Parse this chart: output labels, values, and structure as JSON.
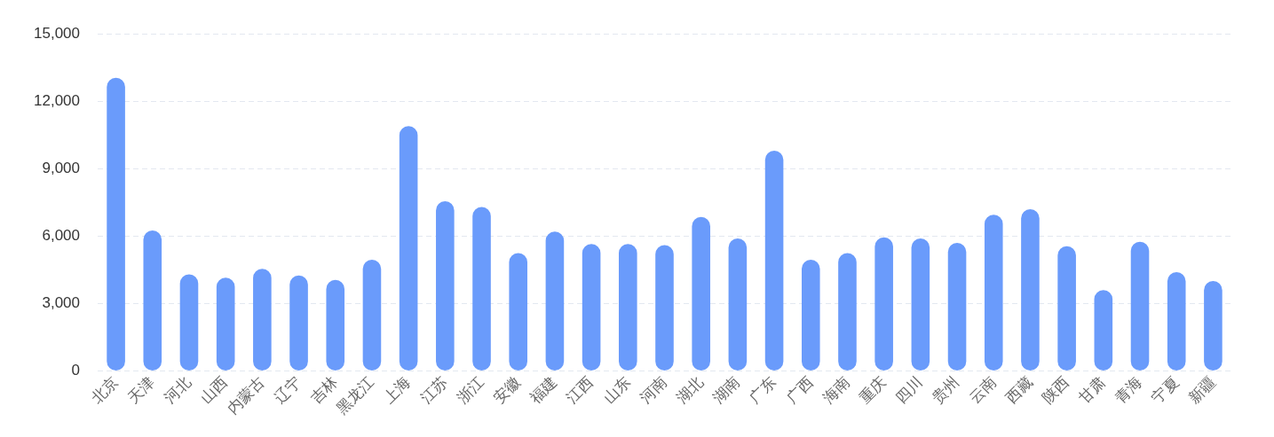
{
  "chart_data": {
    "type": "bar",
    "categories": [
      "北京",
      "天津",
      "河北",
      "山西",
      "内蒙古",
      "辽宁",
      "吉林",
      "黑龙江",
      "上海",
      "江苏",
      "浙江",
      "安徽",
      "福建",
      "江西",
      "山东",
      "河南",
      "湖北",
      "湖南",
      "广东",
      "广西",
      "海南",
      "重庆",
      "四川",
      "贵州",
      "云南",
      "西藏",
      "陕西",
      "甘肃",
      "青海",
      "宁夏",
      "新疆"
    ],
    "values": [
      13050,
      6250,
      4300,
      4150,
      4550,
      4250,
      4050,
      4950,
      10900,
      7550,
      7300,
      5250,
      6200,
      5650,
      5650,
      5600,
      6850,
      5900,
      9800,
      4950,
      5250,
      5950,
      5900,
      5700,
      6950,
      7200,
      5550,
      3600,
      5750,
      4400,
      4000
    ],
    "color": "#6a9bfb",
    "ylim": [
      0,
      15000
    ],
    "yticks": [
      {
        "value": 0,
        "label": "0"
      },
      {
        "value": 3000,
        "label": "3,000"
      },
      {
        "value": 6000,
        "label": "6,000"
      },
      {
        "value": 9000,
        "label": "9,000"
      },
      {
        "value": 12000,
        "label": "12,000"
      },
      {
        "value": 15000,
        "label": "15,000"
      }
    ],
    "grid": "y"
  }
}
